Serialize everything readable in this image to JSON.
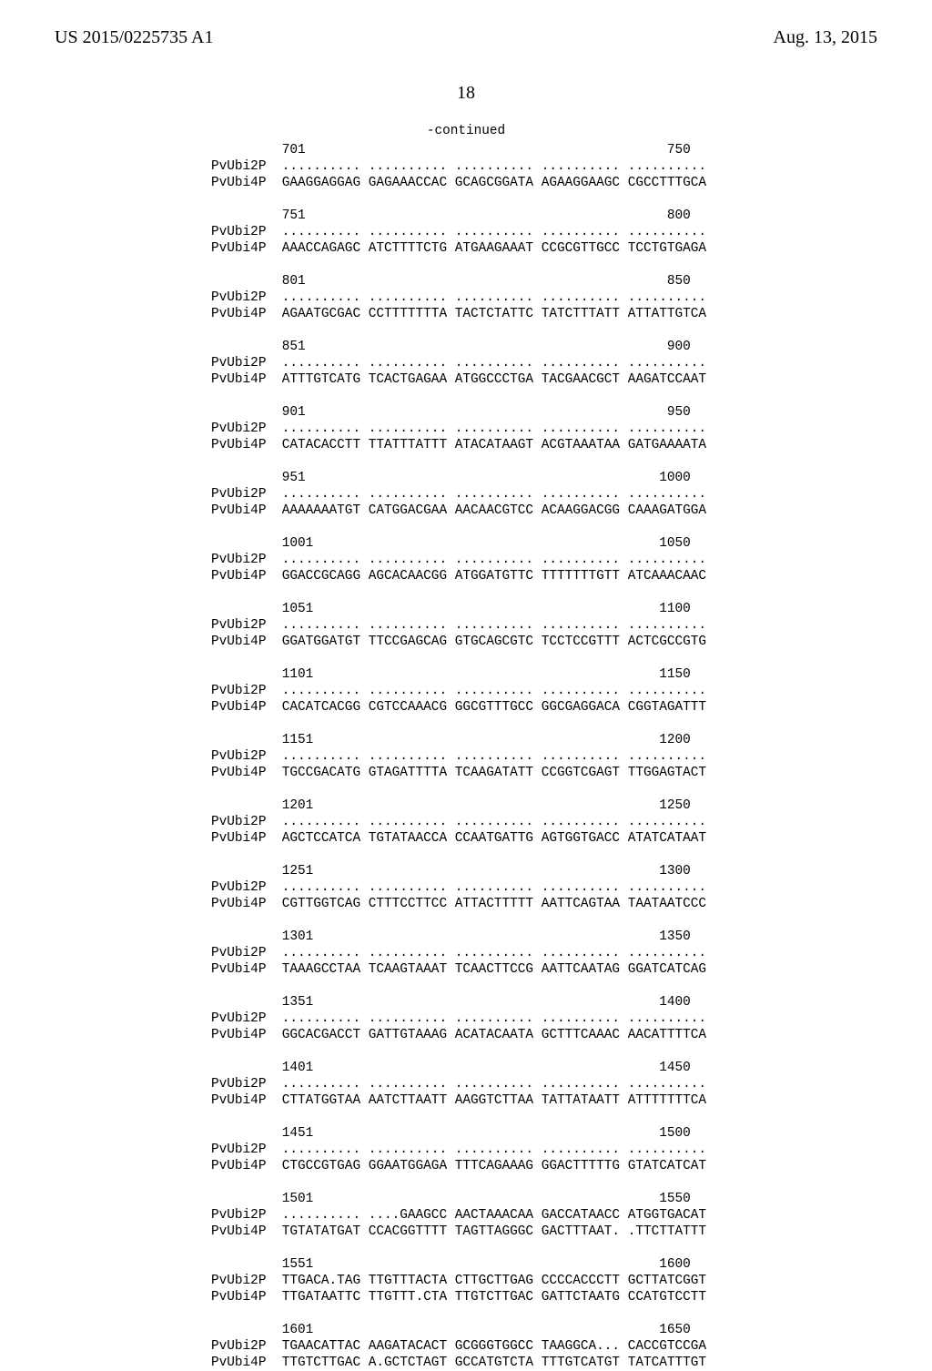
{
  "header": {
    "left": "US 2015/0225735 A1",
    "right": "Aug. 13, 2015"
  },
  "pagenum": "18",
  "continued": "-continued",
  "blocks": [
    {
      "ruler": "         701                                              750",
      "p2": "PvUbi2P  .......... .......... .......... .......... ..........",
      "p4": "PvUbi4P  GAAGGAGGAG GAGAAACCAC GCAGCGGATA AGAAGGAAGC CGCCTTTGCA"
    },
    {
      "ruler": "         751                                              800",
      "p2": "PvUbi2P  .......... .......... .......... .......... ..........",
      "p4": "PvUbi4P  AAACCAGAGC ATCTTTTCTG ATGAAGAAAT CCGCGTTGCC TCCTGTGAGA"
    },
    {
      "ruler": "         801                                              850",
      "p2": "PvUbi2P  .......... .......... .......... .......... ..........",
      "p4": "PvUbi4P  AGAATGCGAC CCTTTTTTTA TACTCTATTC TATCTTTATT ATTATTGTCA"
    },
    {
      "ruler": "         851                                              900",
      "p2": "PvUbi2P  .......... .......... .......... .......... ..........",
      "p4": "PvUbi4P  ATTTGTCATG TCACTGAGAA ATGGCCCTGA TACGAACGCT AAGATCCAAT"
    },
    {
      "ruler": "         901                                              950",
      "p2": "PvUbi2P  .......... .......... .......... .......... ..........",
      "p4": "PvUbi4P  CATACACCTT TTATTTATTT ATACATAAGT ACGTAAATAA GATGAAAATA"
    },
    {
      "ruler": "         951                                             1000",
      "p2": "PvUbi2P  .......... .......... .......... .......... ..........",
      "p4": "PvUbi4P  AAAAAAATGT CATGGACGAA AACAACGTCC ACAAGGACGG CAAAGATGGA"
    },
    {
      "ruler": "         1001                                            1050",
      "p2": "PvUbi2P  .......... .......... .......... .......... ..........",
      "p4": "PvUbi4P  GGACCGCAGG AGCACAACGG ATGGATGTTC TTTTTTTGTT ATCAAACAAC"
    },
    {
      "ruler": "         1051                                            1100",
      "p2": "PvUbi2P  .......... .......... .......... .......... ..........",
      "p4": "PvUbi4P  GGATGGATGT TTCCGAGCAG GTGCAGCGTC TCCTCCGTTT ACTCGCCGTG"
    },
    {
      "ruler": "         1101                                            1150",
      "p2": "PvUbi2P  .......... .......... .......... .......... ..........",
      "p4": "PvUbi4P  CACATCACGG CGTCCAAACG GGCGTTTGCC GGCGAGGACA CGGTAGATTT"
    },
    {
      "ruler": "         1151                                            1200",
      "p2": "PvUbi2P  .......... .......... .......... .......... ..........",
      "p4": "PvUbi4P  TGCCGACATG GTAGATTTTA TCAAGATATT CCGGTCGAGT TTGGAGTACT"
    },
    {
      "ruler": "         1201                                            1250",
      "p2": "PvUbi2P  .......... .......... .......... .......... ..........",
      "p4": "PvUbi4P  AGCTCCATCA TGTATAACCA CCAATGATTG AGTGGTGACC ATATCATAAT"
    },
    {
      "ruler": "         1251                                            1300",
      "p2": "PvUbi2P  .......... .......... .......... .......... ..........",
      "p4": "PvUbi4P  CGTTGGTCAG CTTTCCTTCC ATTACTTTTT AATTCAGTAA TAATAATCCC"
    },
    {
      "ruler": "         1301                                            1350",
      "p2": "PvUbi2P  .......... .......... .......... .......... ..........",
      "p4": "PvUbi4P  TAAAGCCTAA TCAAGTAAAT TCAACTTCCG AATTCAATAG GGATCATCAG"
    },
    {
      "ruler": "         1351                                            1400",
      "p2": "PvUbi2P  .......... .......... .......... .......... ..........",
      "p4": "PvUbi4P  GGCACGACCT GATTGTAAAG ACATACAATA GCTTTCAAAC AACATTTTCA"
    },
    {
      "ruler": "         1401                                            1450",
      "p2": "PvUbi2P  .......... .......... .......... .......... ..........",
      "p4": "PvUbi4P  CTTATGGTAA AATCTTAATT AAGGTCTTAA TATTATAATT ATTTTTTTCA"
    },
    {
      "ruler": "         1451                                            1500",
      "p2": "PvUbi2P  .......... .......... .......... .......... ..........",
      "p4": "PvUbi4P  CTGCCGTGAG GGAATGGAGA TTTCAGAAAG GGACTTTTTG GTATCATCAT"
    },
    {
      "ruler": "         1501                                            1550",
      "p2": "PvUbi2P  .......... ....GAAGCC AACTAAACAA GACCATAACC ATGGTGACAT",
      "p4": "PvUbi4P  TGTATATGAT CCACGGTTTT TAGTTAGGGC GACTTTAAT. .TTCTTATTT"
    },
    {
      "ruler": "         1551                                            1600",
      "p2": "PvUbi2P  TTGACA.TAG TTGTTTACTA CTTGCTTGAG CCCCACCCTT GCTTATCGGT",
      "p4": "PvUbi4P  TTGATAATTC TTGTTT.CTA TTGTCTTGAC GATTCTAATG CCATGTCCTT"
    },
    {
      "ruler": "         1601                                            1650",
      "p2": "PvUbi2P  TGAACATTAC AAGATACACT GCGGGTGGCC TAAGGCA... CACCGTCCGA",
      "p4": "PvUbi4P  TTGTCTTGAC A.GCTCTAGT GCCATGTCTA TTTGTCATGT TATCATTTGT"
    }
  ]
}
